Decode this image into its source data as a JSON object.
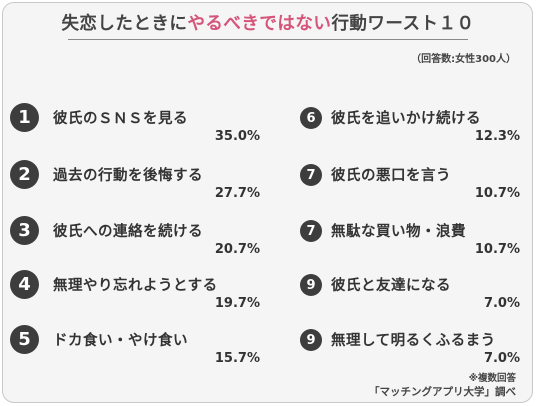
{
  "title": {
    "prefix": "失恋したときに",
    "accent": "やるべきではない",
    "suffix": "行動ワースト１０"
  },
  "respondents_note": "（回答数:女性300人）",
  "left_items": [
    {
      "rank": "1",
      "label": "彼氏のＳＮＳを見る",
      "percent": "35.0%"
    },
    {
      "rank": "2",
      "label": "過去の行動を後悔する",
      "percent": "27.7%"
    },
    {
      "rank": "3",
      "label": "彼氏への連絡を続ける",
      "percent": "20.7%"
    },
    {
      "rank": "4",
      "label": "無理やり忘れようとする",
      "percent": "19.7%"
    },
    {
      "rank": "5",
      "label": "ドカ食い・やけ食い",
      "percent": "15.7%"
    }
  ],
  "right_items": [
    {
      "rank": "6",
      "label": "彼氏を追いかけ続ける",
      "percent": "12.3%"
    },
    {
      "rank": "7",
      "label": "彼氏の悪口を言う",
      "percent": "10.7%"
    },
    {
      "rank": "7",
      "label": "無駄な買い物・浪費",
      "percent": "10.7%"
    },
    {
      "rank": "9",
      "label": "彼氏と友達になる",
      "percent": "7.0%"
    },
    {
      "rank": "9",
      "label": "無理して明るくふるまう",
      "percent": "7.0%"
    }
  ],
  "multiple_answer_note": "※複数回答",
  "source": "「マッチングアプリ大学」調べ",
  "colors": {
    "accent": "#d4547a",
    "badge": "#3d3d3d",
    "background": "#f5f5f5",
    "text": "#333333"
  }
}
